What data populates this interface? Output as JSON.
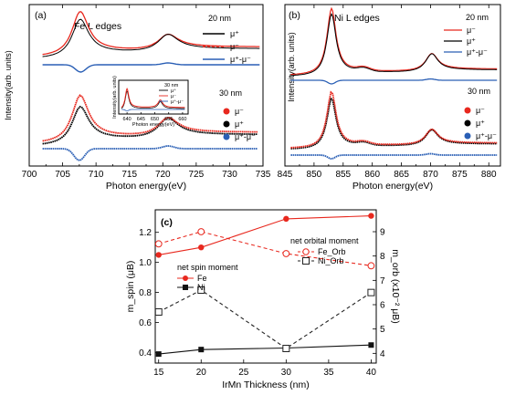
{
  "chart_data": [
    {
      "type": "line",
      "panel": "(a)",
      "title": "Fe L edges",
      "xlabel": "Photon energy(eV)",
      "ylabel": "Intensity(arb. units)",
      "xlim": [
        700,
        735
      ],
      "xticks": [
        "700",
        "705",
        "710",
        "715",
        "720",
        "725",
        "730",
        "735"
      ],
      "group_labels": [
        "20 nm",
        "30 nm"
      ],
      "legend_top": [
        "μ⁺",
        "μ⁻",
        "μ⁺-μ⁻"
      ],
      "legend_bottom": [
        "μ⁻",
        "μ⁺",
        "μ⁺-μ⁻"
      ],
      "inset": {
        "xlabel": "Photon energy(eV)",
        "ylabel": "Intensity(arb. units)",
        "xticks": [
          "640",
          "645",
          "650",
          "655",
          "660"
        ],
        "legend": [
          "30 nm",
          "μ⁺",
          "μ⁻",
          "μ⁺-μ⁻"
        ]
      },
      "colors": {
        "mu_plus": "#000000",
        "mu_minus": "#e8281e",
        "diff": "#2a5fb5"
      }
    },
    {
      "type": "line",
      "panel": "(b)",
      "title": "Ni L edges",
      "xlabel": "Photon energy(eV)",
      "ylabel": "Intensity(arb. units)",
      "xlim": [
        845,
        882
      ],
      "xticks": [
        "845",
        "850",
        "855",
        "860",
        "865",
        "870",
        "875",
        "880"
      ],
      "group_labels": [
        "20 nm",
        "30 nm"
      ],
      "legend_top": [
        "μ⁻",
        "μ⁺",
        "μ⁺-μ⁻"
      ],
      "legend_bottom": [
        "μ⁻",
        "μ⁺",
        "μ⁺-μ⁻"
      ],
      "colors": {
        "mu_plus": "#000000",
        "mu_minus": "#e8281e",
        "diff": "#2a5fb5"
      }
    },
    {
      "type": "line",
      "panel": "(c)",
      "xlabel": "IrMn Thickness (nm)",
      "ylabel_left": "m_spin (μB)",
      "ylabel_right": "m_orb (x10⁻² μB)",
      "x": [
        15,
        20,
        30,
        40
      ],
      "xticks": [
        "15",
        "20",
        "25",
        "30",
        "35",
        "40"
      ],
      "yticks_left": [
        "0.4",
        "0.6",
        "0.8",
        "1.0",
        "1.2"
      ],
      "yticks_right": [
        "4",
        "5",
        "6",
        "7",
        "8",
        "9"
      ],
      "ylim_left": [
        0.33,
        1.35
      ],
      "ylim_right": [
        3.6,
        9.9
      ],
      "legend_spin_title": "net spin moment",
      "legend_orb_title": "net orbital moment",
      "series": [
        {
          "name": "Fe",
          "axis": "left",
          "values": [
            1.05,
            1.1,
            1.29,
            1.31
          ],
          "color": "#e8281e",
          "style": "solid",
          "marker": "filled-circle"
        },
        {
          "name": "Ni",
          "axis": "left",
          "values": [
            0.39,
            0.42,
            0.43,
            0.45
          ],
          "color": "#111111",
          "style": "solid",
          "marker": "filled-square"
        },
        {
          "name": "Fe_Orb",
          "axis": "right",
          "values": [
            8.5,
            9.0,
            8.1,
            7.6
          ],
          "color": "#e8281e",
          "style": "dashed",
          "marker": "open-circle"
        },
        {
          "name": "Ni_Orb",
          "axis": "right",
          "values": [
            5.7,
            6.6,
            4.2,
            6.5
          ],
          "color": "#222222",
          "style": "dashed",
          "marker": "open-square"
        }
      ]
    }
  ]
}
